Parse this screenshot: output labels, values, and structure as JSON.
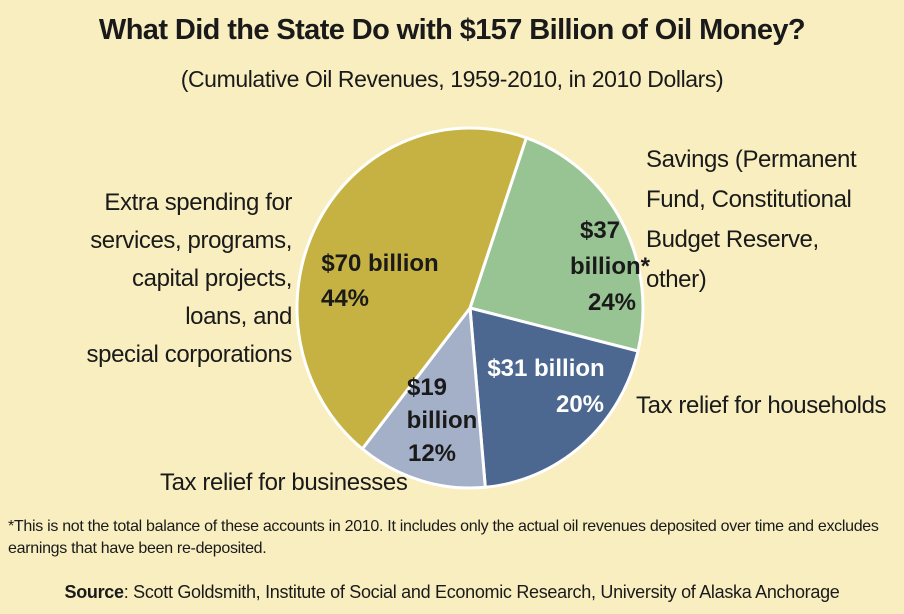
{
  "chart_data": {
    "type": "pie",
    "title": "What Did the State Do with $157 Billion of Oil Money?",
    "subtitle": "(Cumulative Oil Revenues, 1959-2010, in 2010 Dollars)",
    "total": "$157 Billion",
    "slices": [
      {
        "category": "Savings (Permanent Fund, Constitutional Budget Reserve, other)",
        "category_lines": [
          "Savings (Permanent",
          "Fund, Constitutional",
          "Budget Reserve,",
          "other)"
        ],
        "value": 37,
        "percent": 24,
        "label_lines": [
          "$37",
          "billion*",
          "24%"
        ],
        "color": "#98c494",
        "text_color": "#1a1a1a"
      },
      {
        "category": "Tax relief for households",
        "category_lines": [
          "Tax relief for households"
        ],
        "value": 31,
        "percent": 20,
        "label_lines": [
          "$31 billion",
          "20%"
        ],
        "color": "#4c6890",
        "text_color": "#ffffff"
      },
      {
        "category": "Tax relief for businesses",
        "category_lines": [
          "Tax relief for businesses"
        ],
        "value": 19,
        "percent": 12,
        "label_lines": [
          "$19",
          "billion",
          "12%"
        ],
        "color": "#a3b0c8",
        "text_color": "#1a1a1a"
      },
      {
        "category": "Extra spending for services, programs, capital projects, loans, and special corporations",
        "category_lines": [
          "Extra spending for",
          "services, programs,",
          "capital projects,",
          "loans, and",
          "special corporations"
        ],
        "value": 70,
        "percent": 44,
        "label_lines": [
          "$70 billion",
          "44%"
        ],
        "color": "#c6b242",
        "text_color": "#1a1a1a"
      }
    ],
    "legend": "none"
  },
  "footnote": "*This is not the total balance of these accounts in 2010. It includes only the actual oil revenues deposited over time and excludes earnings that have been re-deposited.",
  "source": {
    "label": "Source",
    "text": ": Scott Goldsmith, Institute of Social and Economic Research, University of Alaska Anchorage"
  }
}
